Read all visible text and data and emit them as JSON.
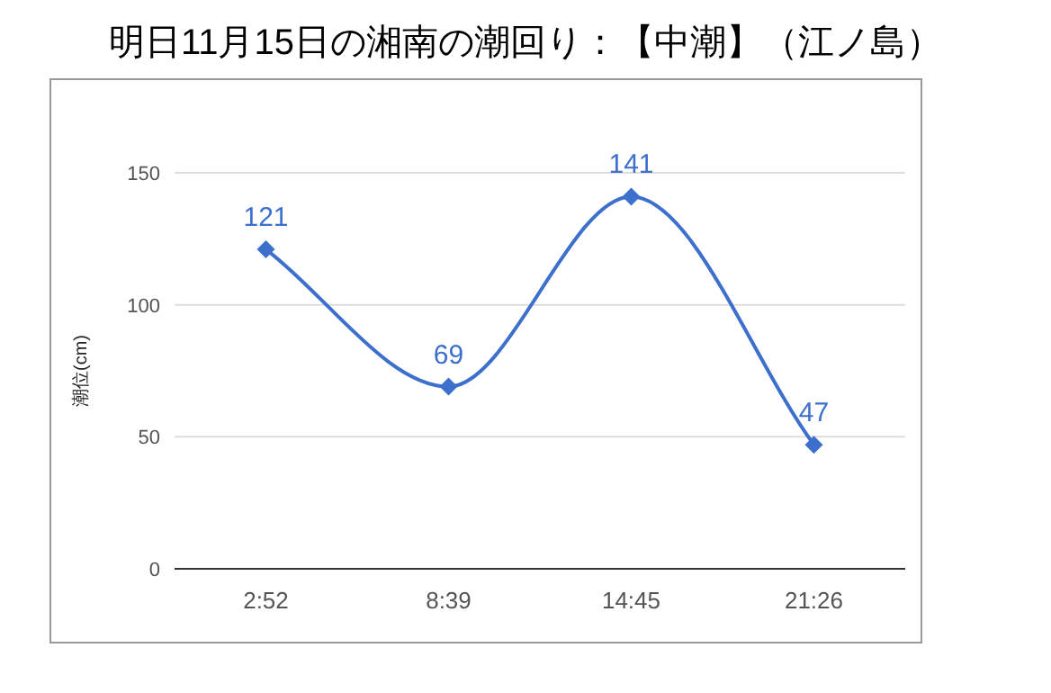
{
  "chart_data": {
    "type": "line",
    "title": "明日11月15日の湘南の潮回り：【中潮】（江ノ島）",
    "ylabel": "潮位(cm)",
    "categories": [
      "2:52",
      "8:39",
      "14:45",
      "21:26"
    ],
    "series": [
      {
        "color": "#3d6fcc",
        "values": [
          121,
          69,
          141,
          47
        ]
      }
    ],
    "ylim": [
      0,
      150
    ],
    "yticks": [
      0,
      50,
      100,
      150
    ],
    "grid": "y",
    "marker": "diamond",
    "line_style": "solid",
    "data_labels": true
  }
}
